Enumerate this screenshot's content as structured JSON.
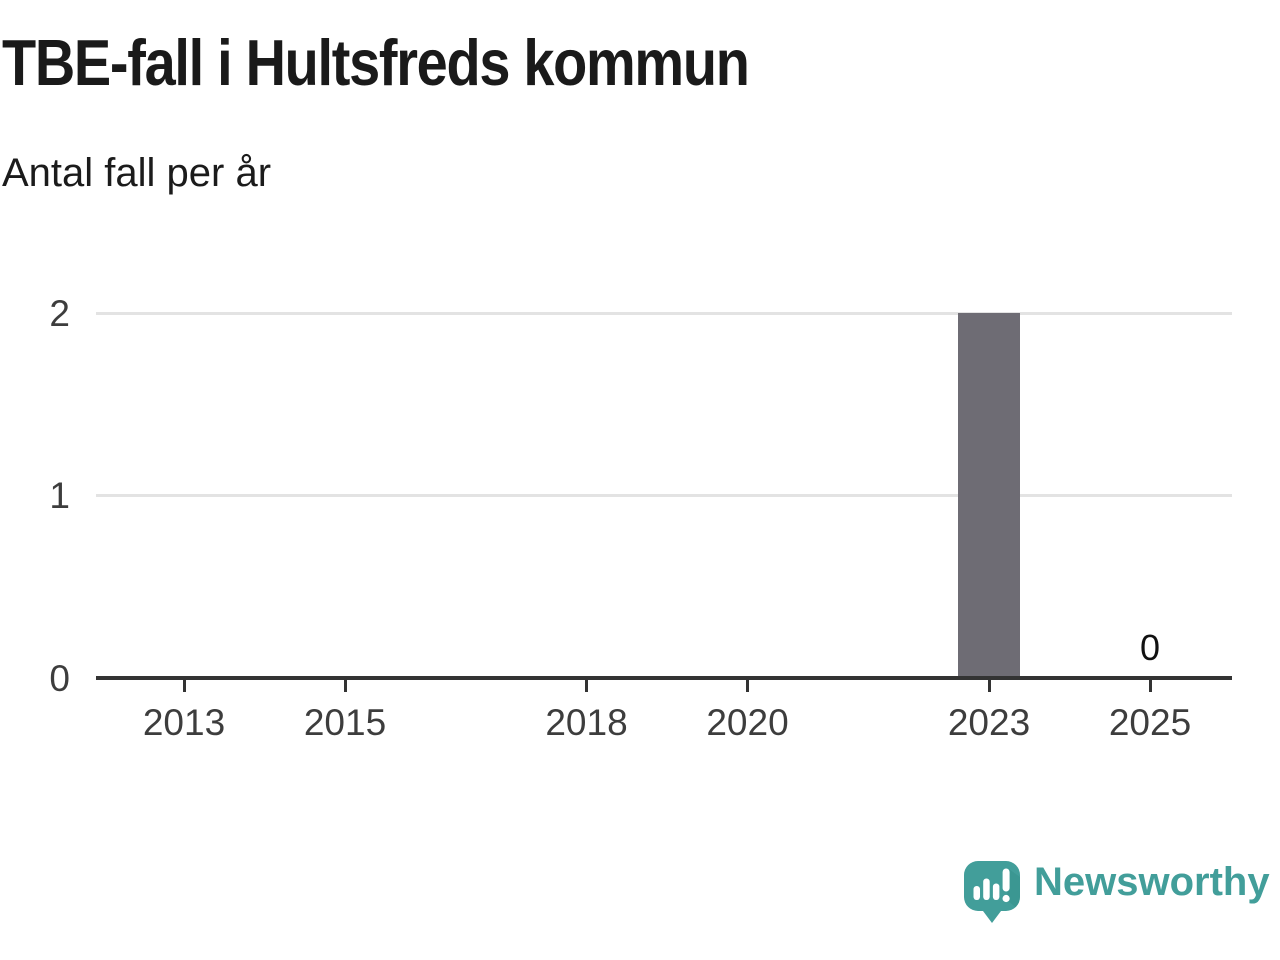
{
  "header": {
    "title": "TBE-fall i Hultsfreds kommun",
    "subtitle": "Antal fall per år"
  },
  "chart_data": {
    "type": "bar",
    "title": "TBE-fall i Hultsfreds kommun",
    "subtitle": "Antal fall per år",
    "xlabel": "",
    "ylabel": "Antal fall per år",
    "ylim": [
      0,
      2
    ],
    "y_ticks": [
      0,
      1,
      2
    ],
    "x_ticks": [
      2013,
      2015,
      2018,
      2020,
      2023,
      2025
    ],
    "x_domain": [
      2011.9,
      2026.1
    ],
    "grid": "horizontal-only",
    "legend": "none",
    "bar_color": "#6e6c74",
    "bar_width_years": 0.78,
    "points": [
      {
        "year": 2023,
        "value": 2,
        "show_label": false,
        "label": ""
      },
      {
        "year": 2025,
        "value": 0,
        "show_label": true,
        "label": "0"
      }
    ]
  },
  "footer": {
    "logo_text": "Newsworthy",
    "brand_color": "#429e9a",
    "brand_shadow_color": "#37918d"
  }
}
